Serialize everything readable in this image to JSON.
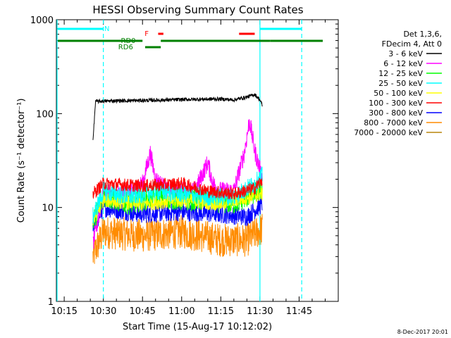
{
  "chart_data": {
    "type": "line",
    "title": "HESSI Observing Summary Count Rates",
    "xlabel": "Start Time (15-Aug-17 10:12:02)",
    "ylabel": "Count Rate (s⁻¹ detector⁻¹)",
    "yscale": "log",
    "ylim": [
      1,
      1000
    ],
    "xlim_minutes": [
      10.2,
      12.0
    ],
    "xticks": [
      "10:15",
      "10:30",
      "10:45",
      "11:00",
      "11:15",
      "11:30",
      "11:45"
    ],
    "yticks": [
      "1",
      "10",
      "100",
      "1000"
    ],
    "legend_header": [
      "Det 1,3,6,",
      "FDecim 4, Att 0"
    ],
    "legend_position": "right",
    "grid": false,
    "series": [
      {
        "name": "3 - 6 keV",
        "color": "#000000",
        "x": [
          "10:26",
          "10:27",
          "10:35",
          "10:45",
          "10:55",
          "11:05",
          "11:15",
          "11:20",
          "11:25",
          "11:28",
          "11:30",
          "11:31"
        ],
        "values": [
          50,
          135,
          137,
          138,
          140,
          142,
          143,
          140,
          150,
          160,
          140,
          120
        ]
      },
      {
        "name": "6 - 12 keV",
        "color": "#ff00ff",
        "x": [
          "10:26",
          "10:30",
          "10:40",
          "10:45",
          "10:48",
          "10:50",
          "10:55",
          "11:05",
          "11:10",
          "11:12",
          "11:15",
          "11:20",
          "11:24",
          "11:26",
          "11:28",
          "11:31"
        ],
        "values": [
          4,
          14,
          14,
          18,
          38,
          20,
          15,
          15,
          30,
          18,
          15,
          15,
          38,
          85,
          40,
          20
        ]
      },
      {
        "name": "12 - 25 keV",
        "color": "#00ff00",
        "x": [
          "10:26",
          "10:30",
          "10:40",
          "10:50",
          "11:00",
          "11:10",
          "11:20",
          "11:25",
          "11:31"
        ],
        "values": [
          7,
          13,
          11,
          13,
          12,
          12,
          11,
          13,
          16
        ]
      },
      {
        "name": "25 - 50 keV",
        "color": "#00ffff",
        "x": [
          "10:26",
          "10:30",
          "10:40",
          "10:50",
          "11:00",
          "11:10",
          "11:20",
          "11:28",
          "11:31"
        ],
        "values": [
          8,
          15,
          13,
          15,
          14,
          13,
          13,
          18,
          22
        ]
      },
      {
        "name": "50 - 100 keV",
        "color": "#ffff00",
        "x": [
          "10:26",
          "10:30",
          "10:45",
          "11:00",
          "11:15",
          "11:31"
        ],
        "values": [
          7,
          12,
          11,
          12,
          11,
          14
        ]
      },
      {
        "name": "100 - 300 keV",
        "color": "#ff0000",
        "x": [
          "10:26",
          "10:30",
          "10:45",
          "11:00",
          "11:10",
          "11:20",
          "11:28",
          "11:31"
        ],
        "values": [
          14,
          18,
          17,
          18,
          15,
          14,
          16,
          20
        ]
      },
      {
        "name": "300 - 800 keV",
        "color": "#0000ff",
        "x": [
          "10:26",
          "10:30",
          "10:45",
          "11:00",
          "11:15",
          "11:25",
          "11:31"
        ],
        "values": [
          6,
          10,
          8.5,
          9,
          8.5,
          8,
          11
        ]
      },
      {
        "name": "800 - 7000 keV",
        "color": "#ff8c00",
        "x": [
          "10:26",
          "10:30",
          "10:45",
          "11:00",
          "11:15",
          "11:25",
          "11:31"
        ],
        "values": [
          3,
          5.5,
          5,
          5.5,
          4.5,
          4.5,
          6
        ]
      },
      {
        "name": "7000 - 20000 keV",
        "color": "#b8860b",
        "x": [],
        "values": []
      }
    ],
    "flags": [
      {
        "label": "N",
        "color": "#00ffff",
        "segments": [
          [
            "10:12",
            "10:30"
          ],
          [
            "11:30",
            "11:46"
          ]
        ]
      },
      {
        "label": "F",
        "color": "#ff0000",
        "segments": [
          [
            "10:51",
            "10:53"
          ],
          [
            "11:22",
            "11:28"
          ]
        ]
      },
      {
        "label": "RD0",
        "color": "#008000",
        "segments": [
          [
            "10:12",
            "10:45"
          ],
          [
            "10:52",
            "11:34"
          ],
          [
            "11:34",
            "12:00"
          ]
        ]
      },
      {
        "label": "RD6",
        "color": "#008000",
        "segments": [
          [
            "10:46",
            "10:52"
          ]
        ]
      }
    ],
    "vertical_lines": [
      {
        "x": "10:12",
        "style": "solid",
        "color": "#00ffff"
      },
      {
        "x": "10:30",
        "style": "dashed",
        "color": "#00ffff"
      },
      {
        "x": "11:30",
        "style": "solid",
        "color": "#00ffff"
      },
      {
        "x": "11:46",
        "style": "dashed",
        "color": "#00ffff"
      }
    ]
  },
  "footer_date": "8-Dec-2017 20:01"
}
